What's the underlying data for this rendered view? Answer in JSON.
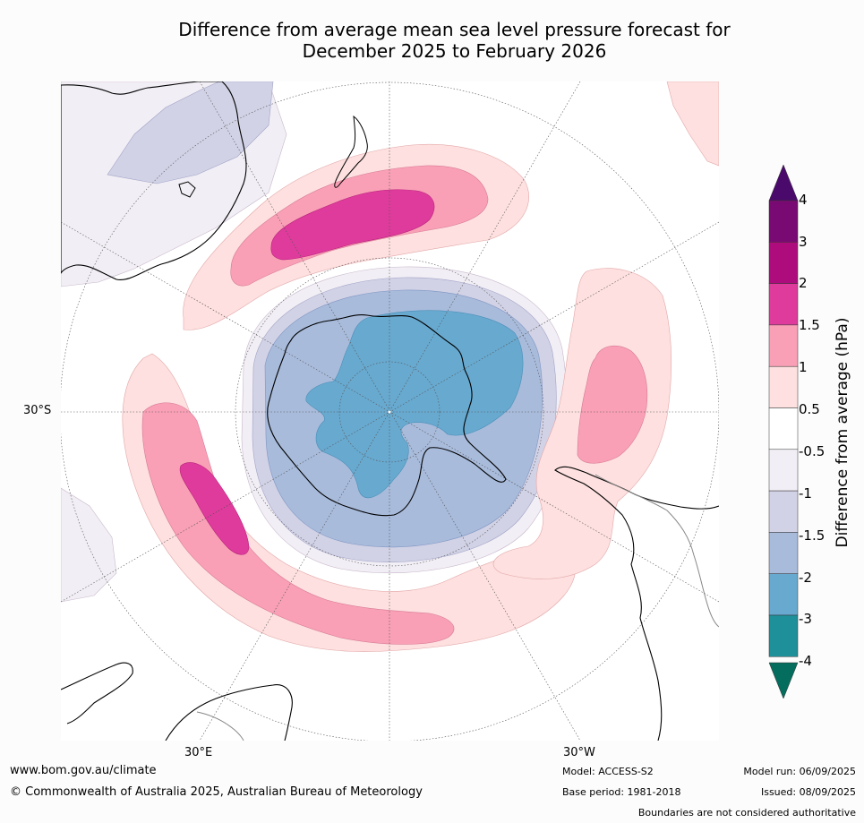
{
  "title": {
    "line1": "Difference from average mean sea level pressure forecast for",
    "line2": "December 2025 to February 2026"
  },
  "map": {
    "projection": "south-polar stereographic",
    "lat_label": "30°S",
    "lon_labels": [
      "30°E",
      "30°W"
    ],
    "anomalies": [
      {
        "region": "south of Australia / Tasman Sea",
        "max_class": "1.5 to 2"
      },
      {
        "region": "southern Indian Ocean",
        "max_class": "1.5 to 2"
      },
      {
        "region": "south Atlantic near South America",
        "max_class": "1 to 1.5"
      },
      {
        "region": "Antarctica and surrounding ocean",
        "min_class": "-3 to -2"
      }
    ]
  },
  "colorbar": {
    "title": "Difference from average (hPa)",
    "ticks": [
      "4",
      "3",
      "2",
      "1.5",
      "1",
      "0.5",
      "-0.5",
      "-1",
      "-1.5",
      "-2",
      "-3",
      "-4"
    ],
    "colors": {
      "over": "#4a0a6c",
      "3_to_4": "#7a0a73",
      "2_to_3": "#ae0c7c",
      "1.5_to_2": "#df3b9c",
      "1_to_1.5": "#f9a0b6",
      "0.5_to_1": "#fde0df",
      "-0.5_to_0.5": "#ffffff",
      "-1_to_-0.5": "#f2eef5",
      "-1.5_to_-1": "#d2d2e6",
      "-2_to_-1.5": "#a8bbdb",
      "-3_to_-2": "#68a9cf",
      "-4_to_-3": "#1e9099",
      "under": "#046d5d"
    }
  },
  "footer": {
    "website": "www.bom.gov.au/climate",
    "copyright": "© Commonwealth of Australia 2025, Australian Bureau of Meteorology",
    "model": "Model: ACCESS-S2",
    "base_period": "Base period: 1981-2018",
    "model_run": "Model run: 06/09/2025",
    "issued": "Issued: 08/09/2025",
    "disclaimer": "Boundaries are not considered authoritative"
  }
}
